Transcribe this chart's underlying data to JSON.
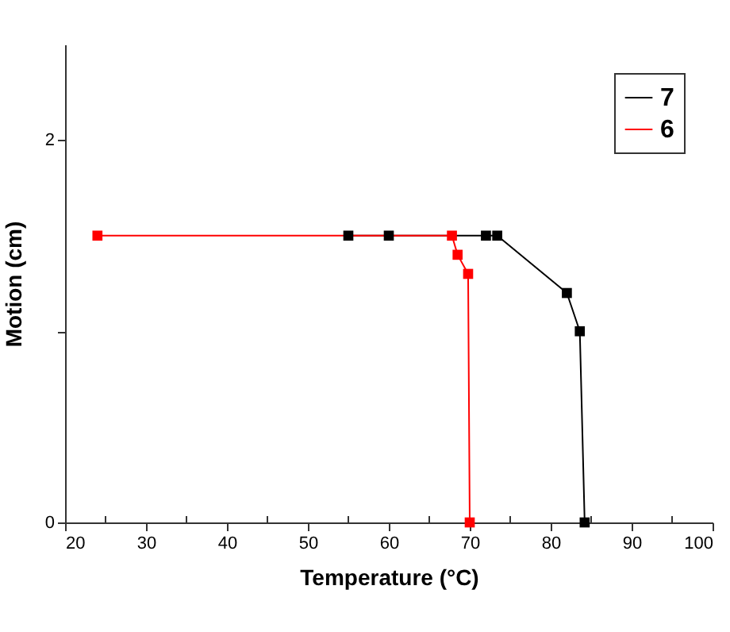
{
  "chart_data": {
    "type": "line",
    "xlabel": "Temperature (°C)",
    "ylabel": "Motion (cm)",
    "xlim": [
      20,
      100
    ],
    "xticks": [
      20,
      {
        "value": 25,
        "label": null
      },
      30,
      {
        "value": 35,
        "label": null
      },
      40,
      {
        "value": 45,
        "label": null
      },
      50,
      {
        "value": 55,
        "label": null
      },
      60,
      {
        "value": 65,
        "label": null
      },
      70,
      {
        "value": 75,
        "label": null
      },
      80,
      {
        "value": 85,
        "label": null
      },
      90,
      {
        "value": 95,
        "label": null
      },
      100
    ],
    "ylim": [
      0,
      2.5
    ],
    "yticks": [
      0,
      {
        "value": 1,
        "label": null
      },
      2
    ],
    "series": [
      {
        "name": "7",
        "color": "#000000",
        "x": [
          55,
          60,
          72,
          73.4,
          82,
          83.6,
          84.2
        ],
        "values": [
          1.5,
          1.5,
          1.5,
          1.5,
          1.2,
          1.0,
          0
        ]
      },
      {
        "name": "6",
        "color": "#ff0000",
        "x": [
          24,
          67.8,
          68.5,
          69.8,
          70
        ],
        "values": [
          1.5,
          1.5,
          1.4,
          1.3,
          0
        ]
      }
    ],
    "marker": "square",
    "line_style": "solid",
    "legend": "top right",
    "grid": false
  }
}
